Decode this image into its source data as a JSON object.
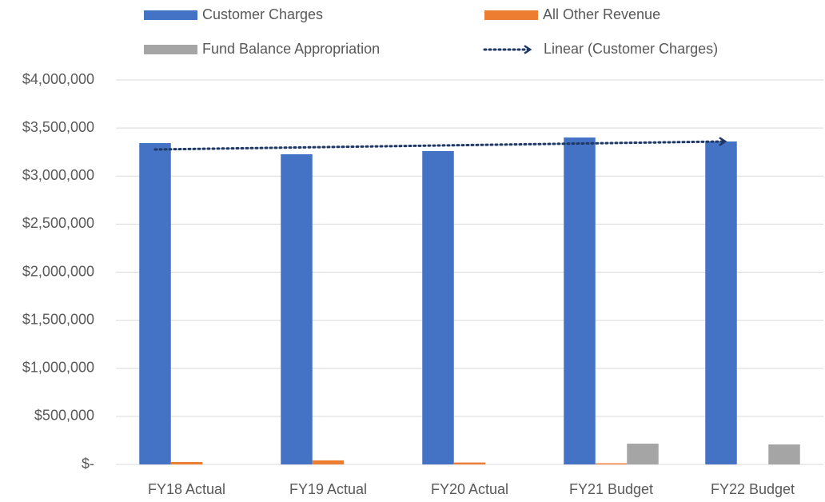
{
  "chart_data": {
    "type": "bar",
    "categories": [
      "FY18 Actual",
      "FY19 Actual",
      "FY20 Actual",
      "FY21 Budget",
      "FY22 Budget"
    ],
    "series": [
      {
        "name": "Customer Charges",
        "color": "#4472c4",
        "values": [
          3343000,
          3227000,
          3260000,
          3401000,
          3360000
        ]
      },
      {
        "name": "All Other Revenue",
        "color": "#ed7d31",
        "values": [
          25000,
          42000,
          20000,
          12000,
          0
        ]
      },
      {
        "name": "Fund Balance Appropriation",
        "color": "#a5a5a5",
        "values": [
          0,
          0,
          0,
          216000,
          208000
        ]
      }
    ],
    "trendline": {
      "name": "Linear (Customer Charges)",
      "color": "#1f3864",
      "series": 0
    },
    "ylim": [
      0,
      4000000
    ],
    "yticks": [
      {
        "value": 0,
        "label": "$-"
      },
      {
        "value": 500000,
        "label": "$500,000"
      },
      {
        "value": 1000000,
        "label": "$1,000,000"
      },
      {
        "value": 1500000,
        "label": "$1,500,000"
      },
      {
        "value": 2000000,
        "label": "$2,000,000"
      },
      {
        "value": 2500000,
        "label": "$2,500,000"
      },
      {
        "value": 3000000,
        "label": "$3,000,000"
      },
      {
        "value": 3500000,
        "label": "$3,500,000"
      },
      {
        "value": 4000000,
        "label": "$4,000,000"
      }
    ],
    "grid": true
  }
}
